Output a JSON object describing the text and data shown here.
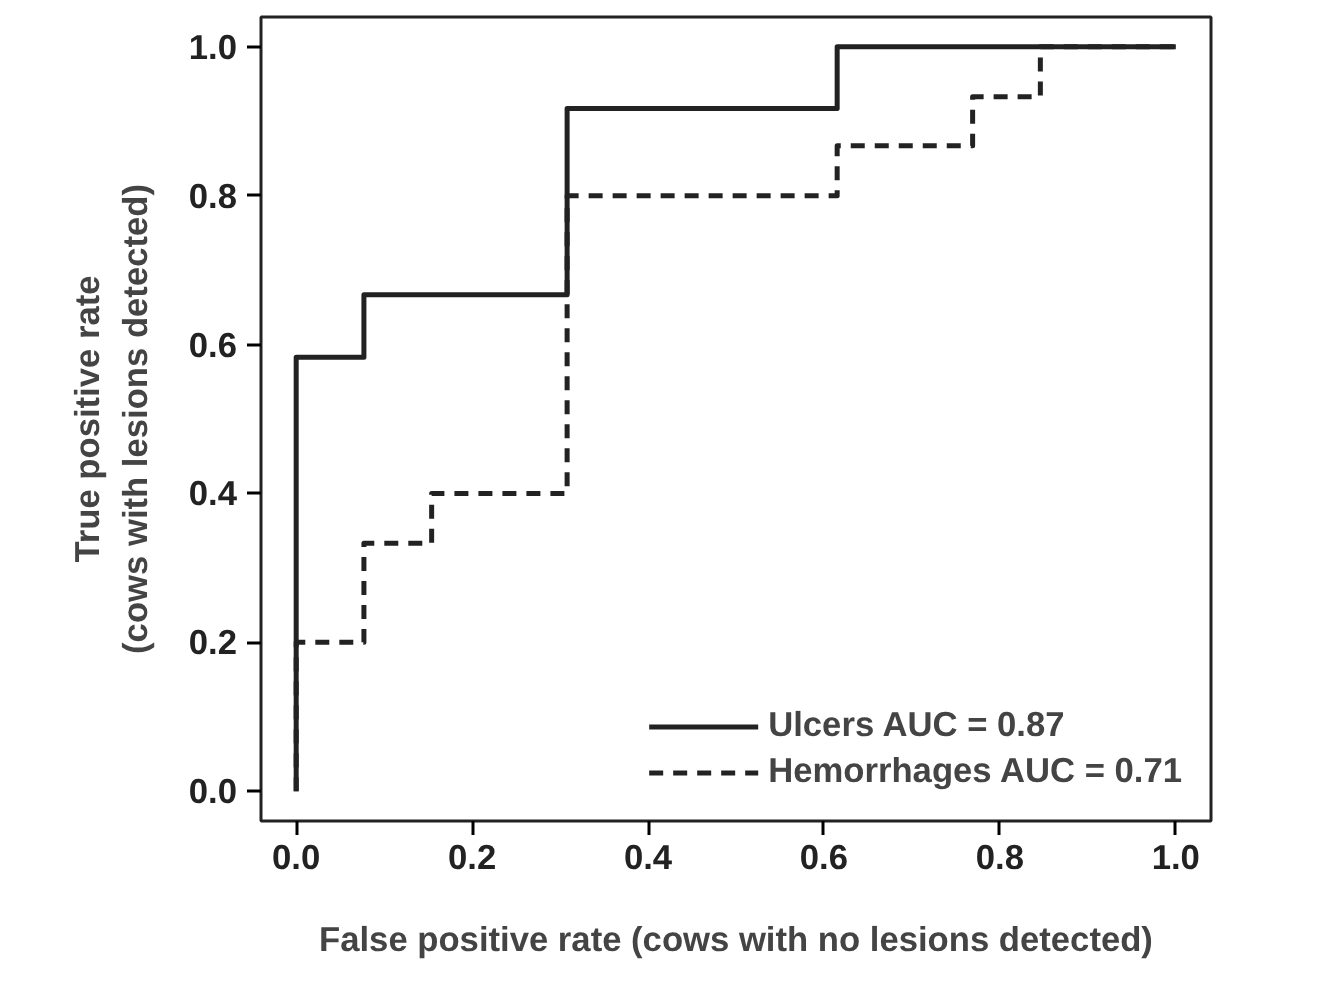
{
  "chart_data": {
    "type": "step",
    "xlabel": "False positive rate (cows with no lesions detected)",
    "ylabel": "True positive rate\n(cows with lesions detected)",
    "xlim": [
      -0.04,
      1.04
    ],
    "ylim": [
      -0.04,
      1.04
    ],
    "xticks": [
      "0.0",
      0.2,
      0.4,
      0.6,
      0.8,
      "1.0"
    ],
    "yticks": [
      {
        "value": 0,
        "label": "0.0"
      },
      {
        "value": 0.2,
        "label": "0.2"
      },
      {
        "value": 0.4,
        "label": "0.4"
      },
      {
        "value": 0.6,
        "label": "0.6"
      },
      {
        "value": 0.8,
        "label": "0.8"
      },
      {
        "value": 1,
        "label": "1.0"
      }
    ],
    "series": [
      {
        "name": "Ulcers AUC = 0.87",
        "color": "#222222",
        "line_style": "solid",
        "x": [
          0,
          0,
          0.077,
          0.308,
          0.615,
          1.0
        ],
        "values": [
          0,
          0.583,
          0.667,
          0.917,
          1.0,
          1.0
        ]
      },
      {
        "name": "Hemorrhages AUC = 0.71",
        "color": "#222222",
        "line_style": "dashed",
        "x": [
          0,
          0,
          0.077,
          0.154,
          0.308,
          0.615,
          0.769,
          0.846,
          1.0
        ],
        "values": [
          0,
          0.2,
          0.333,
          0.4,
          0.8,
          0.867,
          0.933,
          1.0,
          1.0
        ]
      }
    ],
    "grid": false,
    "legend": "bottom right",
    "marker": "none"
  }
}
